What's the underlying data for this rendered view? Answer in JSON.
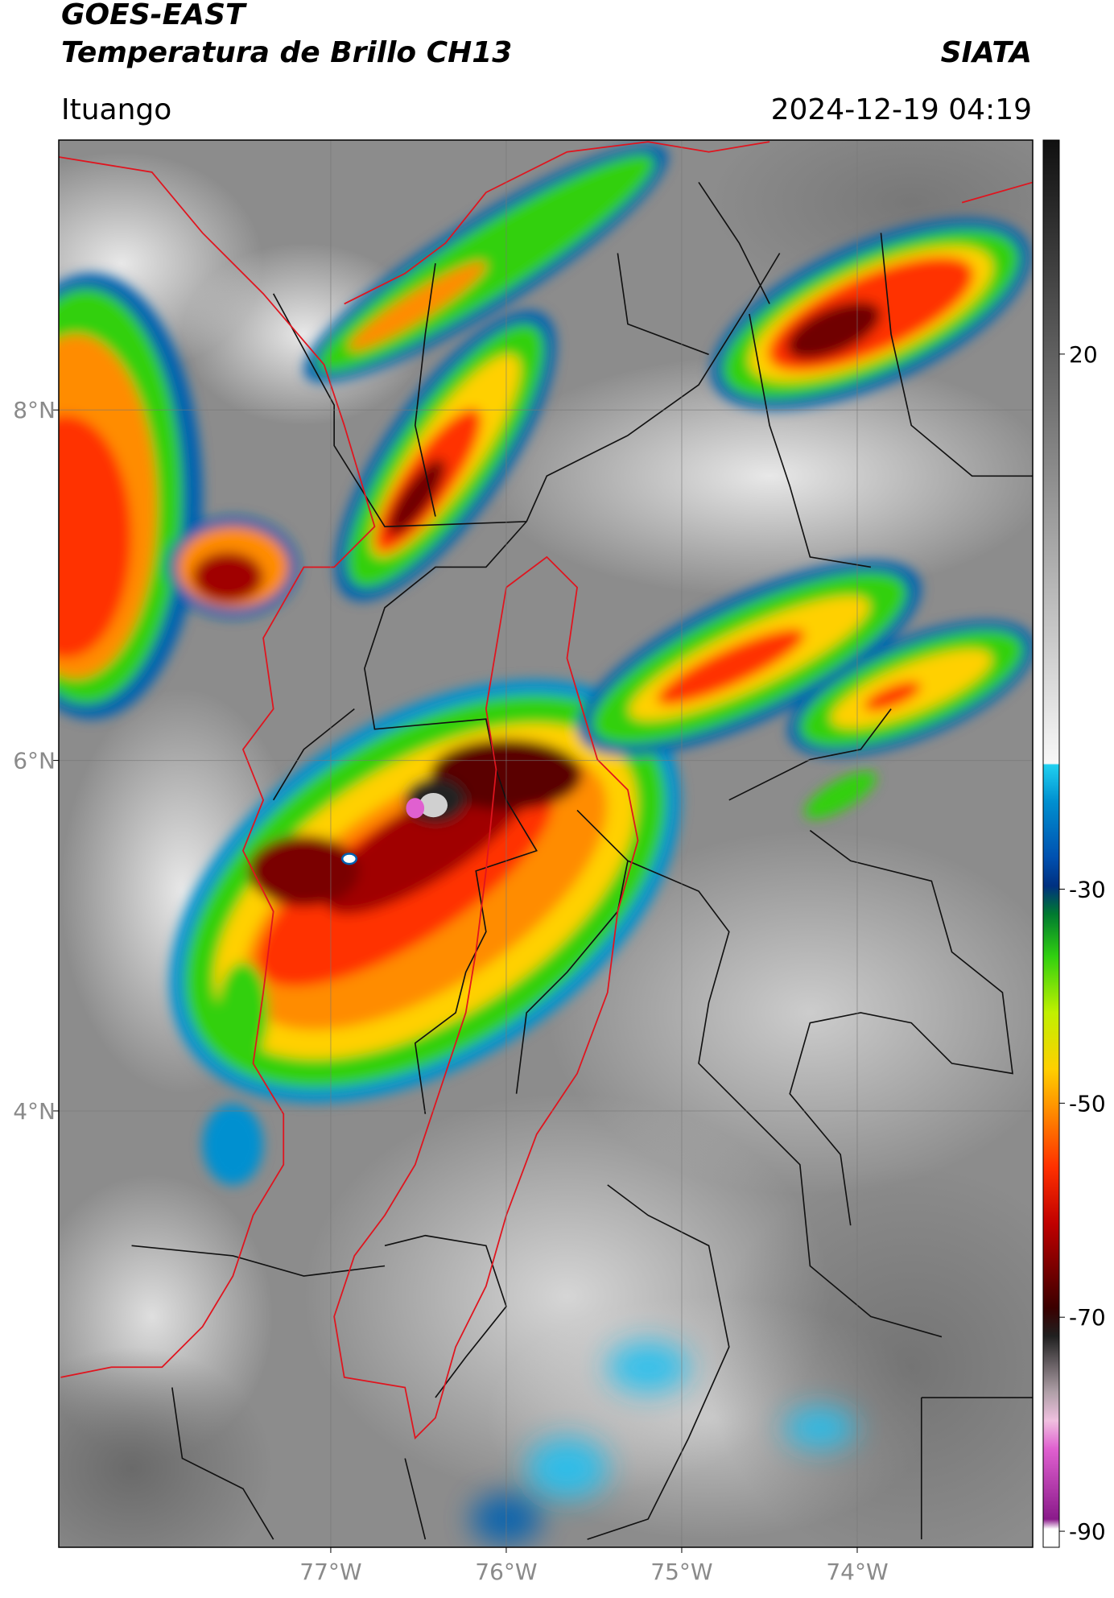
{
  "header": {
    "title": "GOES-EAST",
    "subtitle": "Temperatura de Brillo CH13",
    "brand": "SIATA",
    "location": "Ituango",
    "datetime": "2024-12-19 04:19"
  },
  "map": {
    "xlim": [
      -78.55,
      -73.0
    ],
    "ylim": [
      1.51,
      9.54
    ],
    "xticks": [
      {
        "value": -77,
        "label": "77°W"
      },
      {
        "value": -76,
        "label": "76°W"
      },
      {
        "value": -75,
        "label": "75°W"
      },
      {
        "value": -74,
        "label": "74°W"
      }
    ],
    "yticks": [
      {
        "value": 8,
        "label": "8°N"
      },
      {
        "value": 6,
        "label": "6°N"
      },
      {
        "value": 4,
        "label": "4°N"
      }
    ],
    "grid": true
  },
  "colorbar": {
    "lim": [
      -91.5,
      40
    ],
    "ticks": [
      20,
      -30,
      -50,
      -70,
      -90
    ]
  }
}
